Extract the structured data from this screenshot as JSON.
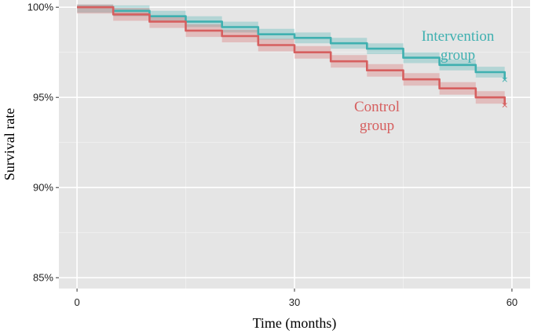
{
  "chart_data": {
    "type": "line",
    "title": "",
    "xlabel": "Time (months)",
    "ylabel": "Survival rate",
    "xlim": [
      -2.5,
      62.5
    ],
    "ylim": [
      84.4,
      100.4
    ],
    "x_ticks": [
      {
        "value": 0,
        "label": "0"
      },
      {
        "value": 30,
        "label": "30"
      },
      {
        "value": 60,
        "label": "60"
      }
    ],
    "y_ticks": [
      {
        "value": 85,
        "label": "85%"
      },
      {
        "value": 90,
        "label": "90%"
      },
      {
        "value": 95,
        "label": "95%"
      },
      {
        "value": 100,
        "label": "100%"
      }
    ],
    "grid": true,
    "legend": "none (direct labels)",
    "series": [
      {
        "name": "Intervention group",
        "label_lines": [
          "Intervention",
          "group"
        ],
        "color": "#3fb0b0",
        "x": [
          0,
          5,
          10,
          15,
          20,
          25,
          30,
          35,
          40,
          45,
          50,
          55,
          59
        ],
        "y": [
          100,
          99.8,
          99.5,
          99.2,
          98.9,
          98.5,
          98.3,
          98.0,
          97.7,
          97.2,
          96.8,
          96.4,
          96.0
        ],
        "ci_halfwidth": 0.3,
        "end_marker": "×"
      },
      {
        "name": "Control group",
        "label_lines": [
          "Control",
          "group"
        ],
        "color": "#d65f5f",
        "x": [
          0,
          5,
          10,
          15,
          20,
          25,
          30,
          35,
          40,
          45,
          50,
          55,
          59
        ],
        "y": [
          100,
          99.6,
          99.2,
          98.7,
          98.4,
          97.9,
          97.5,
          97.0,
          96.5,
          96.0,
          95.5,
          95.0,
          94.6
        ],
        "ci_halfwidth": 0.35,
        "end_marker": "×"
      }
    ]
  }
}
